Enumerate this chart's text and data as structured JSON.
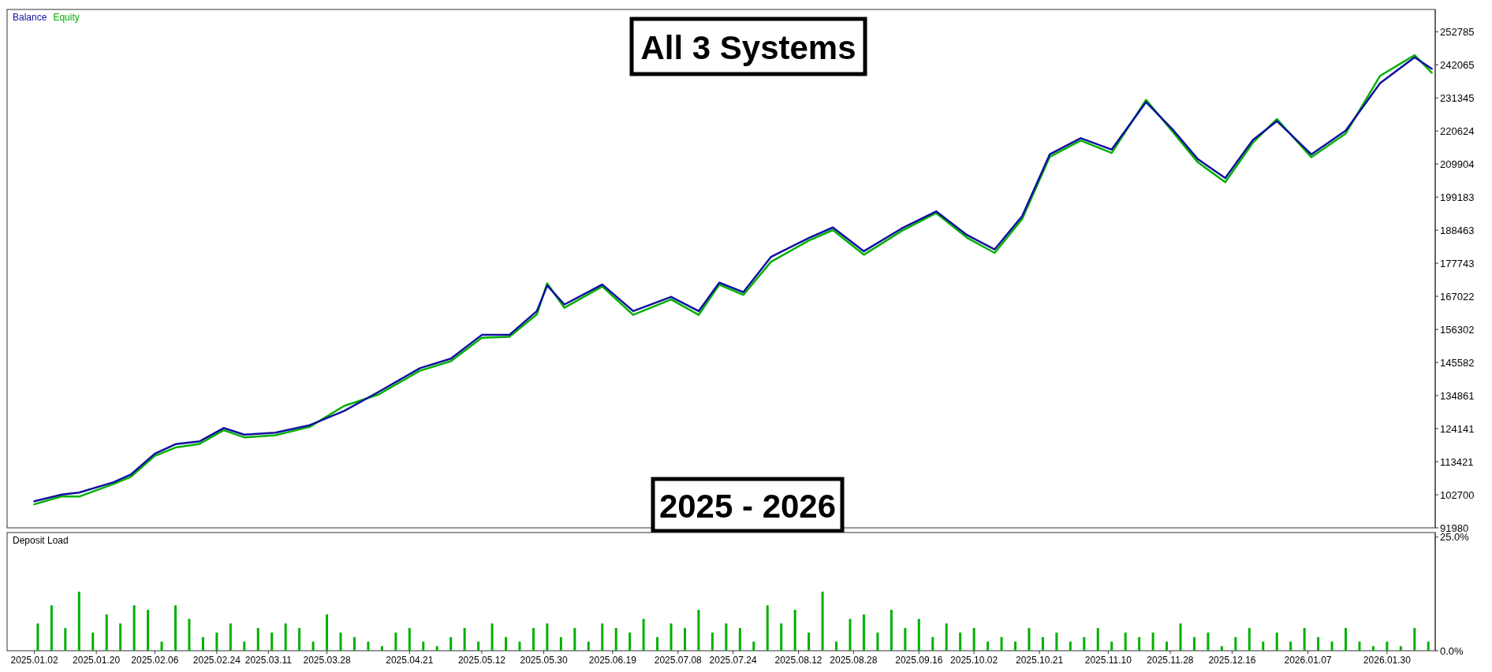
{
  "chart_data": [
    {
      "type": "line",
      "title": "All 3 Systems",
      "annotations": [
        "2025 - 2026"
      ],
      "legend": "top left",
      "tick_labels": "y",
      "xlim": [
        "2024-12-26",
        "2026-02-13"
      ],
      "ylim": [
        91980,
        260000
      ],
      "yticks": [
        91980,
        102700,
        113421,
        124141,
        134861,
        145582,
        156302,
        167022,
        177743,
        188463,
        199183,
        209904,
        220624,
        231345,
        242065,
        252785
      ],
      "series": [
        {
          "name": "Equity",
          "color": "#00b000",
          "x": [
            "2025-01-02",
            "2025-01-10",
            "2025-01-15",
            "2025-01-25",
            "2025-01-30",
            "2025-02-06",
            "2025-02-12",
            "2025-02-19",
            "2025-02-26",
            "2025-03-04",
            "2025-03-13",
            "2025-03-23",
            "2025-04-02",
            "2025-04-12",
            "2025-04-24",
            "2025-05-03",
            "2025-05-12",
            "2025-05-20",
            "2025-05-28",
            "2025-05-31",
            "2025-06-05",
            "2025-06-16",
            "2025-06-25",
            "2025-07-06",
            "2025-07-14",
            "2025-07-20",
            "2025-07-27",
            "2025-08-04",
            "2025-08-15",
            "2025-08-22",
            "2025-08-31",
            "2025-09-11",
            "2025-09-21",
            "2025-09-30",
            "2025-10-08",
            "2025-10-16",
            "2025-10-24",
            "2025-11-02",
            "2025-11-11",
            "2025-11-21",
            "2025-11-29",
            "2025-12-06",
            "2025-12-14",
            "2025-12-22",
            "2025-12-29",
            "2026-01-08",
            "2026-01-18",
            "2026-01-28",
            "2026-02-07",
            "2026-02-12"
          ],
          "values": [
            99600,
            102200,
            102100,
            106200,
            108500,
            115300,
            118000,
            119200,
            123600,
            121300,
            122000,
            124700,
            131500,
            135200,
            142900,
            146000,
            153600,
            153900,
            161200,
            171200,
            163300,
            170200,
            161000,
            166000,
            161000,
            170800,
            167500,
            178200,
            185100,
            188500,
            180500,
            188200,
            194000,
            186000,
            181100,
            192100,
            212200,
            217500,
            213500,
            230700,
            220000,
            210500,
            204000,
            216800,
            224500,
            212100,
            219800,
            238500,
            245200,
            239500
          ]
        },
        {
          "name": "Balance",
          "color": "#1010a0",
          "x": [
            "2025-01-02",
            "2025-01-10",
            "2025-01-15",
            "2025-01-25",
            "2025-01-30",
            "2025-02-06",
            "2025-02-12",
            "2025-02-19",
            "2025-02-26",
            "2025-03-04",
            "2025-03-13",
            "2025-03-23",
            "2025-04-02",
            "2025-04-12",
            "2025-04-24",
            "2025-05-03",
            "2025-05-12",
            "2025-05-20",
            "2025-05-28",
            "2025-05-31",
            "2025-06-05",
            "2025-06-16",
            "2025-06-25",
            "2025-07-06",
            "2025-07-14",
            "2025-07-20",
            "2025-07-27",
            "2025-08-04",
            "2025-08-15",
            "2025-08-22",
            "2025-08-31",
            "2025-09-11",
            "2025-09-21",
            "2025-09-30",
            "2025-10-08",
            "2025-10-16",
            "2025-10-24",
            "2025-11-02",
            "2025-11-11",
            "2025-11-21",
            "2025-11-29",
            "2025-12-06",
            "2025-12-14",
            "2025-12-22",
            "2025-12-29",
            "2026-01-08",
            "2026-01-18",
            "2026-01-28",
            "2026-02-07",
            "2026-02-12"
          ],
          "values": [
            100600,
            102760,
            103400,
            106770,
            109230,
            116010,
            119090,
            120010,
            124330,
            122170,
            122790,
            125250,
            129870,
            136030,
            143730,
            146810,
            154510,
            154510,
            162220,
            170530,
            164370,
            170840,
            162220,
            166840,
            162220,
            171460,
            168380,
            179770,
            185940,
            189330,
            181630,
            189020,
            194560,
            186860,
            182240,
            193020,
            213040,
            218280,
            214590,
            229990,
            220750,
            211510,
            205350,
            217670,
            223830,
            213040,
            220750,
            236150,
            244470,
            240780
          ]
        }
      ]
    },
    {
      "type": "bar",
      "title": "Deposit Load",
      "color": "#00b000",
      "xlim": [
        "2024-12-26",
        "2026-02-13"
      ],
      "xticks": [
        {
          "value": "2025-01-02",
          "label": "2025.01.02"
        },
        {
          "value": "2025-01-20",
          "label": "2025.01.20"
        },
        {
          "value": "2025-02-06",
          "label": "2025.02.06"
        },
        {
          "value": "2025-02-24",
          "label": "2025.02.24"
        },
        {
          "value": "2025-03-11",
          "label": "2025.03.11"
        },
        {
          "value": "2025-03-28",
          "label": "2025.03.28"
        },
        {
          "value": "2025-04-21",
          "label": "2025.04.21"
        },
        {
          "value": "2025-05-12",
          "label": "2025.05.12"
        },
        {
          "value": "2025-05-30",
          "label": "2025.05.30"
        },
        {
          "value": "2025-06-19",
          "label": "2025.06.19"
        },
        {
          "value": "2025-07-08",
          "label": "2025.07.08"
        },
        {
          "value": "2025-07-24",
          "label": "2025.07.24"
        },
        {
          "value": "2025-08-12",
          "label": "2025.08.12"
        },
        {
          "value": "2025-08-28",
          "label": "2025.08.28"
        },
        {
          "value": "2025-09-16",
          "label": "2025.09.16"
        },
        {
          "value": "2025-10-02",
          "label": "2025.10.02"
        },
        {
          "value": "2025-10-21",
          "label": "2025.10.21"
        },
        {
          "value": "2025-11-10",
          "label": "2025.11.10"
        },
        {
          "value": "2025-11-28",
          "label": "2025.11.28"
        },
        {
          "value": "2025-12-16",
          "label": "2025.12.16"
        },
        {
          "value": "2026-01-07",
          "label": "2026.01.07"
        },
        {
          "value": "2026-01-30",
          "label": "2026.01.30"
        }
      ],
      "ylim": [
        0,
        26
      ],
      "yticks": [
        {
          "value": 0,
          "label": "0.0%"
        },
        {
          "value": 25,
          "label": "25.0%"
        }
      ],
      "x": [
        "2025-01-03",
        "2025-01-07",
        "2025-01-11",
        "2025-01-15",
        "2025-01-19",
        "2025-01-23",
        "2025-01-27",
        "2025-01-31",
        "2025-02-04",
        "2025-02-08",
        "2025-02-12",
        "2025-02-16",
        "2025-02-20",
        "2025-02-24",
        "2025-02-28",
        "2025-03-04",
        "2025-03-08",
        "2025-03-12",
        "2025-03-16",
        "2025-03-20",
        "2025-03-24",
        "2025-03-28",
        "2025-04-01",
        "2025-04-05",
        "2025-04-09",
        "2025-04-13",
        "2025-04-17",
        "2025-04-21",
        "2025-04-25",
        "2025-04-29",
        "2025-05-03",
        "2025-05-07",
        "2025-05-11",
        "2025-05-15",
        "2025-05-19",
        "2025-05-23",
        "2025-05-27",
        "2025-05-31",
        "2025-06-04",
        "2025-06-08",
        "2025-06-12",
        "2025-06-16",
        "2025-06-20",
        "2025-06-24",
        "2025-06-28",
        "2025-07-02",
        "2025-07-06",
        "2025-07-10",
        "2025-07-14",
        "2025-07-18",
        "2025-07-22",
        "2025-07-26",
        "2025-07-30",
        "2025-08-03",
        "2025-08-07",
        "2025-08-11",
        "2025-08-15",
        "2025-08-19",
        "2025-08-23",
        "2025-08-27",
        "2025-08-31",
        "2025-09-04",
        "2025-09-08",
        "2025-09-12",
        "2025-09-16",
        "2025-09-20",
        "2025-09-24",
        "2025-09-28",
        "2025-10-02",
        "2025-10-06",
        "2025-10-10",
        "2025-10-14",
        "2025-10-18",
        "2025-10-22",
        "2025-10-26",
        "2025-10-30",
        "2025-11-03",
        "2025-11-07",
        "2025-11-11",
        "2025-11-15",
        "2025-11-19",
        "2025-11-23",
        "2025-11-27",
        "2025-12-01",
        "2025-12-05",
        "2025-12-09",
        "2025-12-13",
        "2025-12-17",
        "2025-12-21",
        "2025-12-25",
        "2025-12-29",
        "2026-01-02",
        "2026-01-06",
        "2026-01-10",
        "2026-01-14",
        "2026-01-18",
        "2026-01-22",
        "2026-01-26",
        "2026-01-30",
        "2026-02-03",
        "2026-02-07",
        "2026-02-11"
      ],
      "values": [
        6,
        10,
        5,
        13,
        4,
        8,
        6,
        10,
        9,
        2,
        10,
        7,
        3,
        4,
        6,
        2,
        5,
        4,
        6,
        5,
        2,
        8,
        4,
        3,
        2,
        1,
        4,
        5,
        2,
        1,
        3,
        5,
        2,
        6,
        3,
        2,
        5,
        6,
        3,
        5,
        2,
        6,
        5,
        4,
        7,
        3,
        6,
        5,
        9,
        4,
        6,
        5,
        2,
        10,
        6,
        9,
        4,
        13,
        2,
        7,
        8,
        4,
        9,
        5,
        7,
        3,
        6,
        4,
        5,
        2,
        3,
        2,
        5,
        3,
        4,
        2,
        3,
        5,
        2,
        4,
        3,
        4,
        2,
        6,
        3,
        4,
        1,
        3,
        5,
        2,
        4,
        2,
        5,
        3,
        2,
        5,
        2,
        1,
        2,
        1,
        5,
        2
      ]
    }
  ]
}
